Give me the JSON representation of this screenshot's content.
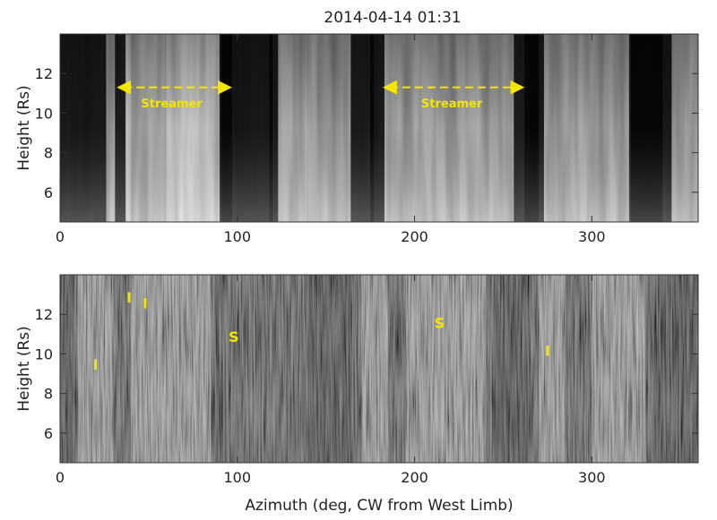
{
  "chart_data": [
    {
      "type": "heatmap",
      "title": "2014-04-14 01:31",
      "xlabel": "",
      "ylabel": "Height (Rs)",
      "xlim": [
        0,
        360
      ],
      "ylim": [
        4.5,
        14
      ],
      "xticks": [
        "0",
        "100",
        "200",
        "300"
      ],
      "yticks": [
        "6",
        "8",
        "10",
        "12"
      ],
      "annotations": [
        {
          "text": "Streamer",
          "x": 63,
          "y": 10.3,
          "arrow_x": [
            36,
            93
          ],
          "arrow_y": 11.3
        },
        {
          "text": "Streamer",
          "x": 221,
          "y": 10.3,
          "arrow_x": [
            186,
            258
          ],
          "arrow_y": 11.3
        }
      ],
      "bright_bands": [
        [
          26,
          40
        ],
        [
          36,
          91
        ],
        [
          60,
          90
        ],
        [
          120,
          140
        ],
        [
          140,
          175
        ],
        [
          183,
          262
        ],
        [
          270,
          322
        ],
        [
          340,
          360
        ]
      ],
      "dark_bands": [
        [
          31,
          37
        ],
        [
          90,
          97
        ],
        [
          118,
          123
        ],
        [
          164,
          177
        ],
        [
          256,
          273
        ],
        [
          321,
          345
        ]
      ]
    },
    {
      "type": "heatmap",
      "title": "",
      "xlabel": "Azimuth (deg, CW from West Limb)",
      "ylabel": "Height (Rs)",
      "xlim": [
        0,
        360
      ],
      "ylim": [
        4.5,
        14
      ],
      "xticks": [
        "0",
        "100",
        "200",
        "300"
      ],
      "yticks": [
        "6",
        "8",
        "10",
        "12"
      ],
      "annotations": [
        {
          "text": "I",
          "x": 20,
          "y": 9.2
        },
        {
          "text": "I",
          "x": 39,
          "y": 12.6
        },
        {
          "text": "I",
          "x": 48,
          "y": 12.3
        },
        {
          "text": "S",
          "x": 98,
          "y": 10.6
        },
        {
          "text": "S",
          "x": 214,
          "y": 11.3
        },
        {
          "text": "I",
          "x": 275,
          "y": 9.9
        }
      ],
      "bright_bands": [
        [
          10,
          30
        ],
        [
          40,
          85
        ],
        [
          170,
          185
        ],
        [
          195,
          240
        ],
        [
          270,
          285
        ],
        [
          300,
          330
        ]
      ],
      "dark_bands": [
        [
          0,
          8
        ],
        [
          88,
          92
        ],
        [
          140,
          165
        ],
        [
          245,
          265
        ],
        [
          335,
          360
        ]
      ]
    }
  ]
}
